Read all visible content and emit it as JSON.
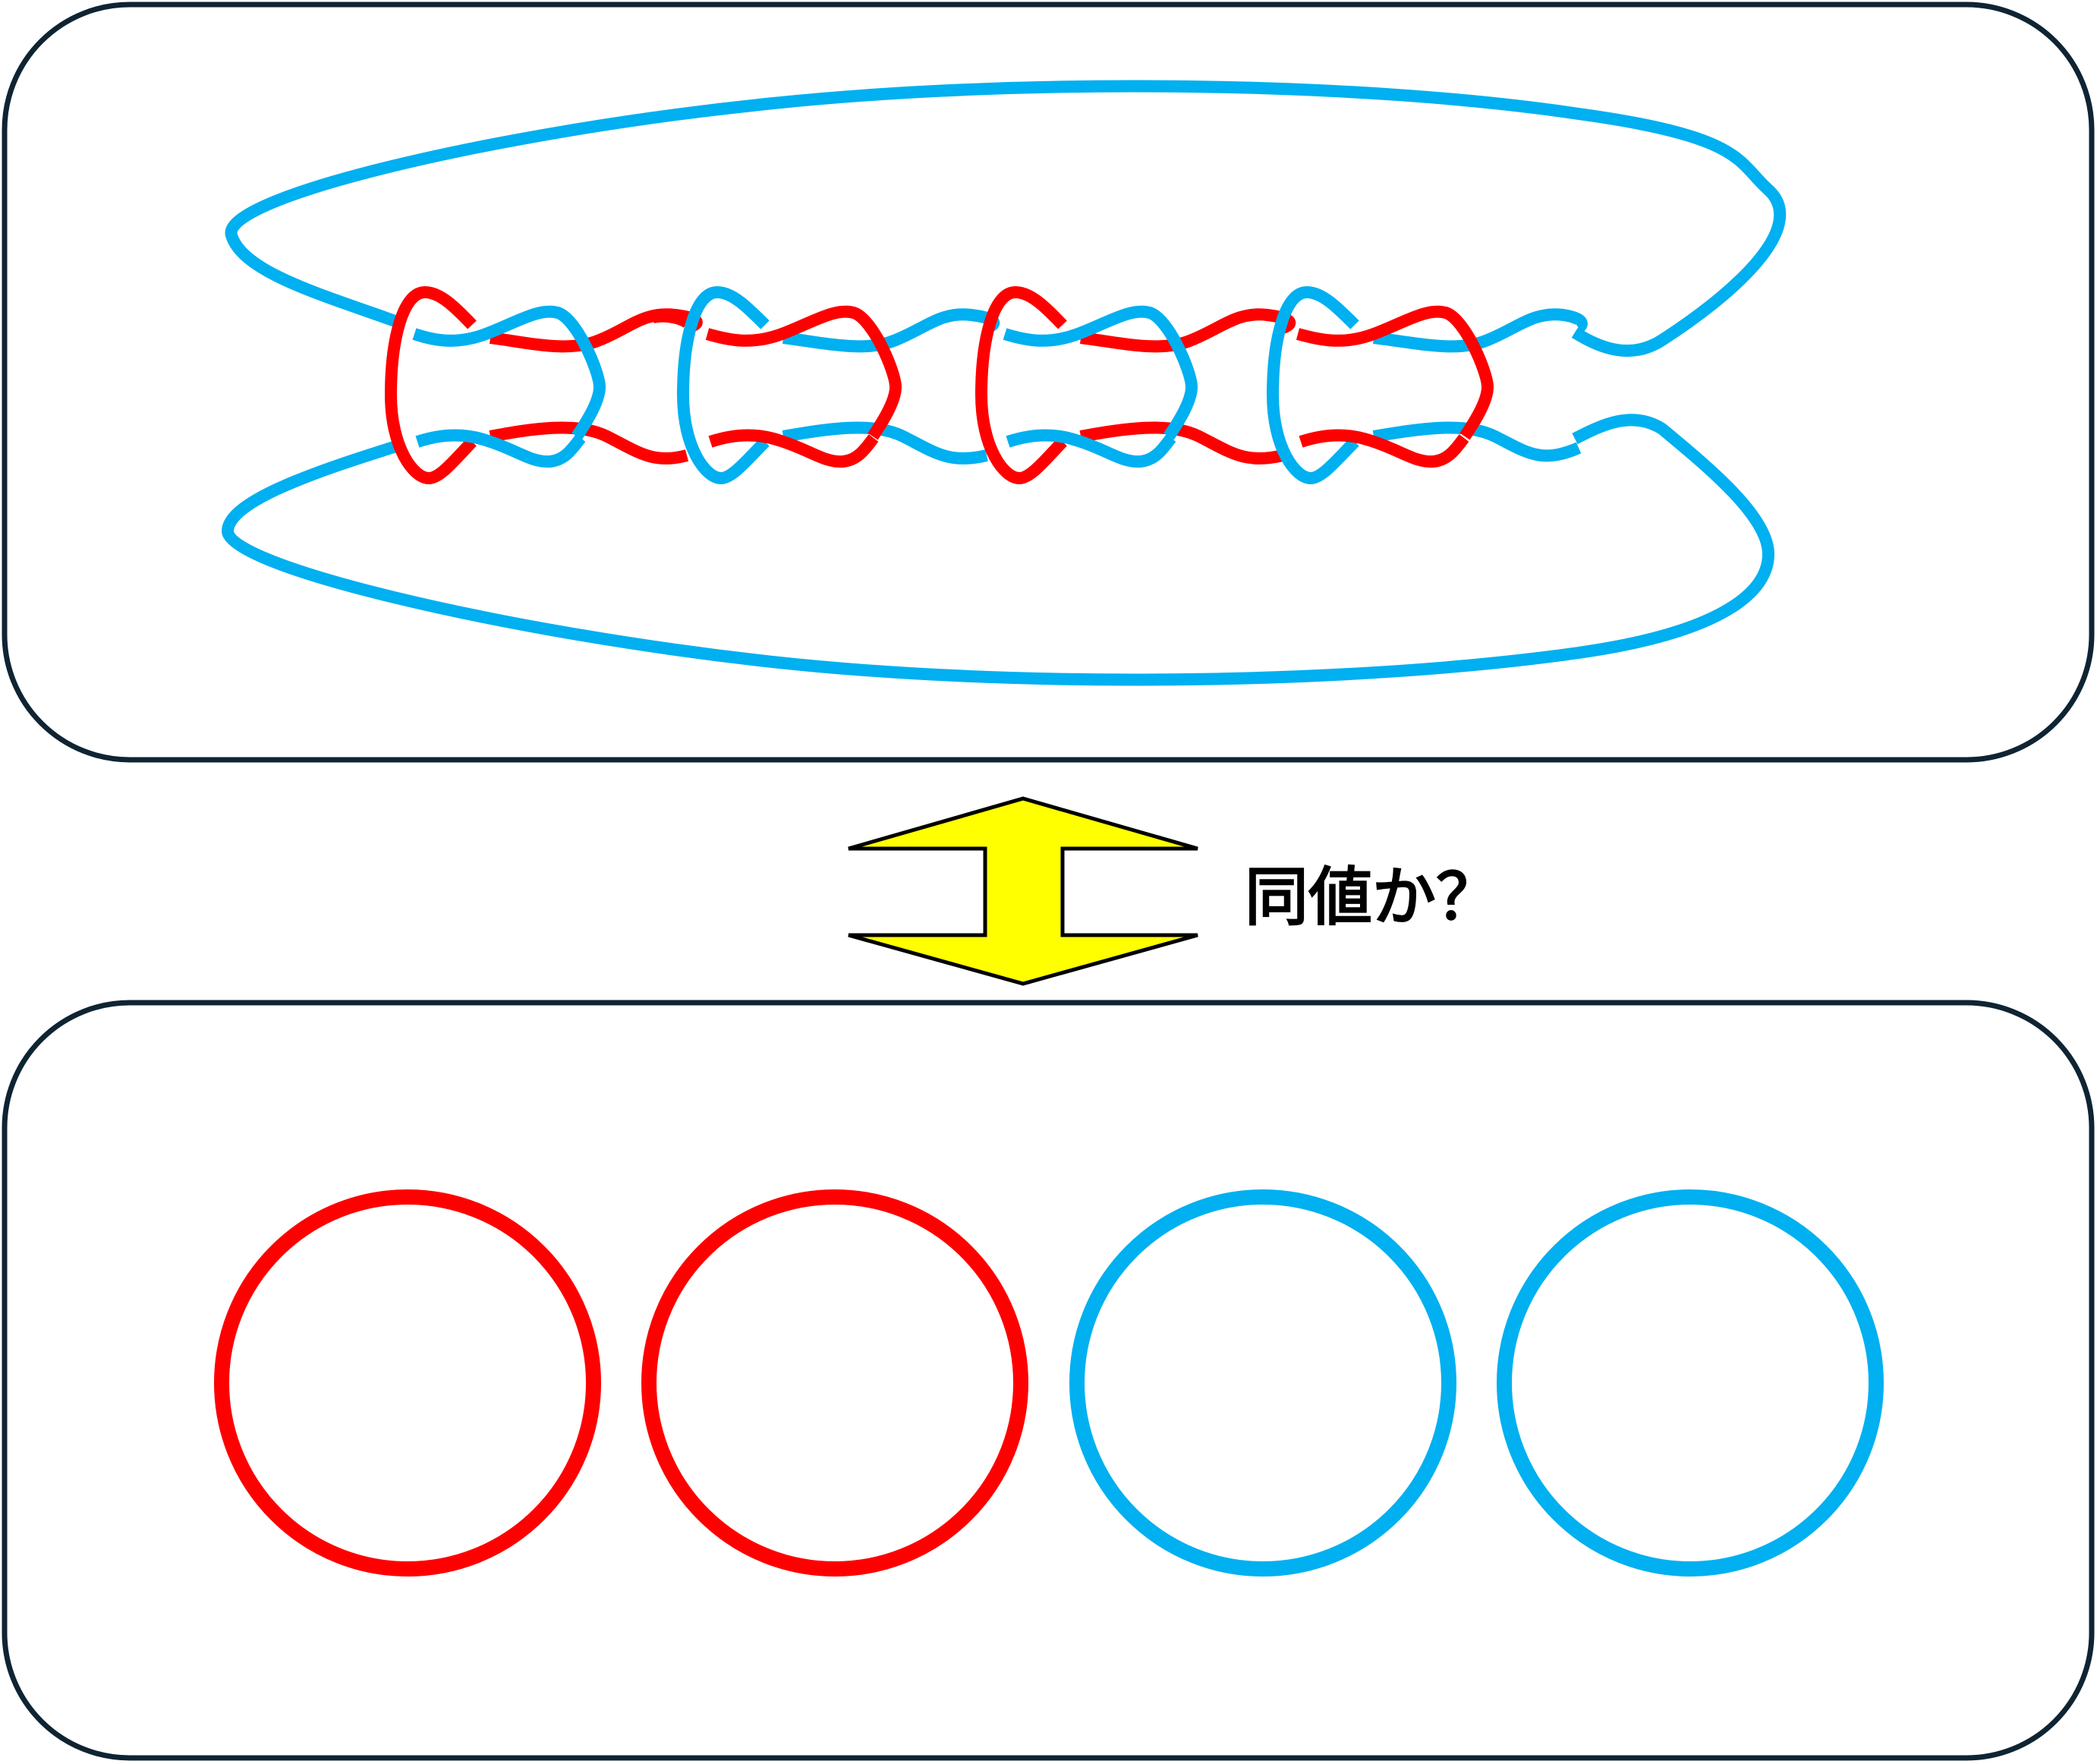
{
  "colors": {
    "panel_border": "#0f2433",
    "red": "#ff0000",
    "blue": "#00b0f0",
    "arrow_fill": "#ffff00",
    "arrow_stroke": "#000000"
  },
  "question_label": "同値か？",
  "top_panel": {
    "chain_loops": [
      {
        "color": "red"
      },
      {
        "color": "blue"
      },
      {
        "color": "red"
      },
      {
        "color": "blue"
      }
    ]
  },
  "bottom_panel": {
    "circles": [
      {
        "color": "red"
      },
      {
        "color": "red"
      },
      {
        "color": "blue"
      },
      {
        "color": "blue"
      }
    ]
  }
}
